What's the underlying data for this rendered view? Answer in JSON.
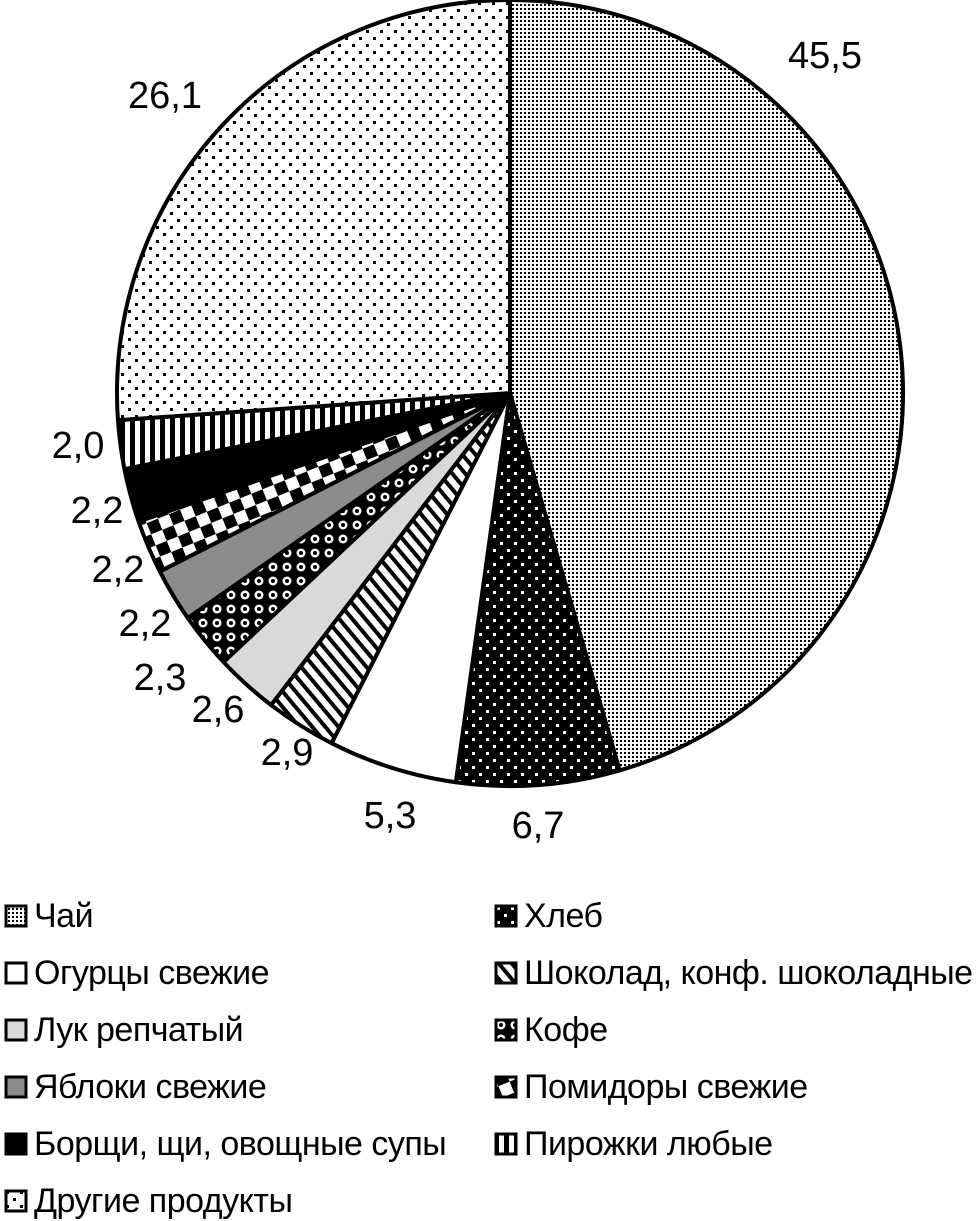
{
  "chart_data": {
    "type": "pie",
    "slices": [
      {
        "label": "Чай",
        "value": 45.5,
        "value_label": "45,5",
        "pattern": "fine-dots"
      },
      {
        "label": "Хлеб",
        "value": 6.7,
        "value_label": "6,7",
        "pattern": "black-dots"
      },
      {
        "label": "Огурцы свежие",
        "value": 5.3,
        "value_label": "5,3",
        "pattern": "white"
      },
      {
        "label": "Шоколад, конф. шоколадные",
        "value": 2.9,
        "value_label": "2,9",
        "pattern": "diagonal"
      },
      {
        "label": "Лук репчатый",
        "value": 2.6,
        "value_label": "2,6",
        "pattern": "light-gray"
      },
      {
        "label": "Кофе",
        "value": 2.3,
        "value_label": "2,3",
        "pattern": "circles"
      },
      {
        "label": "Яблоки свежие",
        "value": 2.2,
        "value_label": "2,2",
        "pattern": "gray"
      },
      {
        "label": "Помидоры свежие",
        "value": 2.2,
        "value_label": "2,2",
        "pattern": "checker"
      },
      {
        "label": "Борщи, щи, овощные супы",
        "value": 2.2,
        "value_label": "2,2",
        "pattern": "black"
      },
      {
        "label": "Пирожки любые",
        "value": 2.0,
        "value_label": "2,0",
        "pattern": "vertical-stripes"
      },
      {
        "label": "Другие продукты",
        "value": 26.1,
        "value_label": "26,1",
        "pattern": "sparse-dots"
      }
    ],
    "start_angle": "12 o'clock",
    "direction": "clockwise",
    "legend_position": "bottom",
    "legend_columns": 2
  },
  "legend": {
    "left_column": [
      {
        "label": "Чай",
        "pattern": "fine-dots"
      },
      {
        "label": "Огурцы свежие",
        "pattern": "white"
      },
      {
        "label": "Лук репчатый",
        "pattern": "light-gray"
      },
      {
        "label": "Яблоки свежие",
        "pattern": "gray"
      },
      {
        "label": "Борщи, щи, овощные супы",
        "pattern": "black"
      },
      {
        "label": "Другие продукты",
        "pattern": "sparse-dots"
      }
    ],
    "right_column": [
      {
        "label": "Хлеб",
        "pattern": "black-dots"
      },
      {
        "label": "Шоколад, конф. шоколадные",
        "pattern": "diagonal"
      },
      {
        "label": "Кофе",
        "pattern": "circles"
      },
      {
        "label": "Помидоры свежие",
        "pattern": "checker"
      },
      {
        "label": "Пирожки любые",
        "pattern": "vertical-stripes"
      }
    ]
  }
}
